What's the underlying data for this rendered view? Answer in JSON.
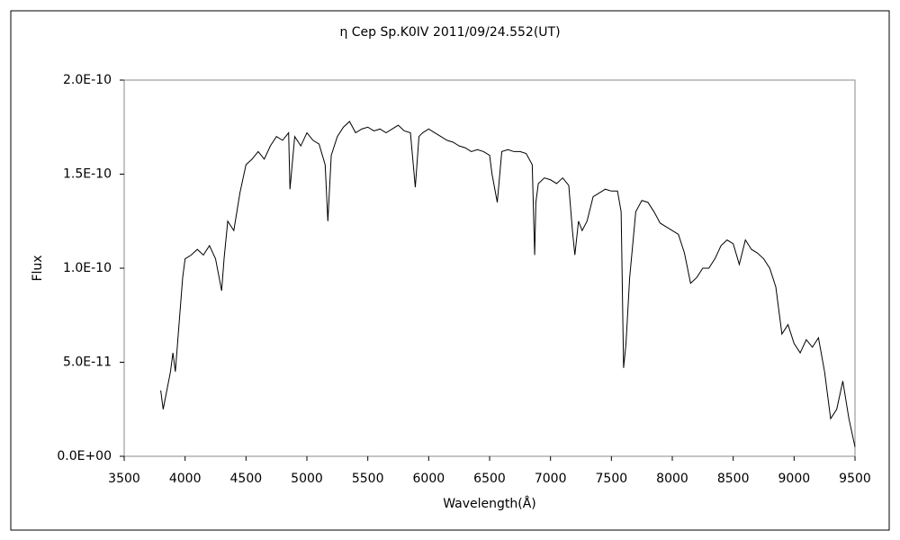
{
  "chart_data": {
    "type": "line",
    "title": "η Cep  Sp.K0IV  2011/09/24.552(UT)",
    "xlabel": "Wavelength(Å)",
    "ylabel": "Flux",
    "xlim": [
      3500,
      9500
    ],
    "xticks": [
      3500,
      4000,
      4500,
      5000,
      5500,
      6000,
      6500,
      7000,
      7500,
      8000,
      8500,
      9000,
      9500
    ],
    "ylim": [
      0,
      2e-10
    ],
    "yticks": [
      {
        "value": 0,
        "label": "0.0E+00"
      },
      {
        "value": 5e-11,
        "label": "5.0E-11"
      },
      {
        "value": 1e-10,
        "label": "1.0E-10"
      },
      {
        "value": 1.5e-10,
        "label": "1.5E-10"
      },
      {
        "value": 2e-10,
        "label": "2.0E-10"
      }
    ],
    "grid": false,
    "x": [
      3800,
      3820,
      3850,
      3880,
      3900,
      3920,
      3950,
      3980,
      4000,
      4050,
      4100,
      4150,
      4200,
      4250,
      4300,
      4320,
      4350,
      4400,
      4450,
      4500,
      4550,
      4600,
      4650,
      4700,
      4750,
      4800,
      4850,
      4861,
      4900,
      4950,
      5000,
      5050,
      5100,
      5150,
      5172,
      5200,
      5250,
      5300,
      5350,
      5400,
      5450,
      5500,
      5550,
      5600,
      5650,
      5700,
      5750,
      5800,
      5850,
      5890,
      5920,
      5950,
      6000,
      6050,
      6100,
      6150,
      6200,
      6250,
      6300,
      6350,
      6400,
      6450,
      6500,
      6520,
      6563,
      6600,
      6650,
      6700,
      6750,
      6800,
      6850,
      6870,
      6880,
      6900,
      6950,
      7000,
      7050,
      7100,
      7150,
      7180,
      7200,
      7230,
      7260,
      7300,
      7350,
      7400,
      7450,
      7500,
      7550,
      7580,
      7600,
      7620,
      7650,
      7700,
      7750,
      7800,
      7850,
      7900,
      7950,
      8000,
      8050,
      8100,
      8150,
      8200,
      8250,
      8300,
      8350,
      8400,
      8450,
      8500,
      8550,
      8600,
      8650,
      8700,
      8750,
      8800,
      8850,
      8900,
      8950,
      9000,
      9050,
      9100,
      9150,
      9200,
      9250,
      9300,
      9350,
      9400,
      9450,
      9500
    ],
    "series": [
      {
        "color": "#000000",
        "values": [
          3.5e-11,
          2.5e-11,
          3.5e-11,
          4.5e-11,
          5.5e-11,
          4.5e-11,
          7e-11,
          9.5e-11,
          1.05e-10,
          1.07e-10,
          1.1e-10,
          1.07e-10,
          1.12e-10,
          1.05e-10,
          8.8e-11,
          1.05e-10,
          1.25e-10,
          1.2e-10,
          1.4e-10,
          1.55e-10,
          1.58e-10,
          1.62e-10,
          1.58e-10,
          1.65e-10,
          1.7e-10,
          1.68e-10,
          1.72e-10,
          1.42e-10,
          1.7e-10,
          1.65e-10,
          1.72e-10,
          1.68e-10,
          1.66e-10,
          1.55e-10,
          1.25e-10,
          1.6e-10,
          1.7e-10,
          1.75e-10,
          1.78e-10,
          1.72e-10,
          1.74e-10,
          1.75e-10,
          1.73e-10,
          1.74e-10,
          1.72e-10,
          1.74e-10,
          1.76e-10,
          1.73e-10,
          1.72e-10,
          1.43e-10,
          1.7e-10,
          1.72e-10,
          1.74e-10,
          1.72e-10,
          1.7e-10,
          1.68e-10,
          1.67e-10,
          1.65e-10,
          1.64e-10,
          1.62e-10,
          1.63e-10,
          1.62e-10,
          1.6e-10,
          1.5e-10,
          1.35e-10,
          1.62e-10,
          1.63e-10,
          1.62e-10,
          1.62e-10,
          1.61e-10,
          1.55e-10,
          1.07e-10,
          1.35e-10,
          1.45e-10,
          1.48e-10,
          1.47e-10,
          1.45e-10,
          1.48e-10,
          1.44e-10,
          1.2e-10,
          1.07e-10,
          1.25e-10,
          1.2e-10,
          1.25e-10,
          1.38e-10,
          1.4e-10,
          1.42e-10,
          1.41e-10,
          1.41e-10,
          1.3e-10,
          4.7e-11,
          6e-11,
          9.5e-11,
          1.3e-10,
          1.36e-10,
          1.35e-10,
          1.3e-10,
          1.24e-10,
          1.22e-10,
          1.2e-10,
          1.18e-10,
          1.08e-10,
          9.2e-11,
          9.5e-11,
          1e-10,
          1e-10,
          1.05e-10,
          1.12e-10,
          1.15e-10,
          1.13e-10,
          1.02e-10,
          1.15e-10,
          1.1e-10,
          1.08e-10,
          1.05e-10,
          1e-10,
          9e-11,
          6.5e-11,
          7e-11,
          6e-11,
          5.5e-11,
          6.2e-11,
          5.8e-11,
          6.3e-11,
          4.5e-11,
          2e-11,
          2.5e-11,
          4e-11,
          2e-11,
          5e-12
        ]
      }
    ]
  }
}
